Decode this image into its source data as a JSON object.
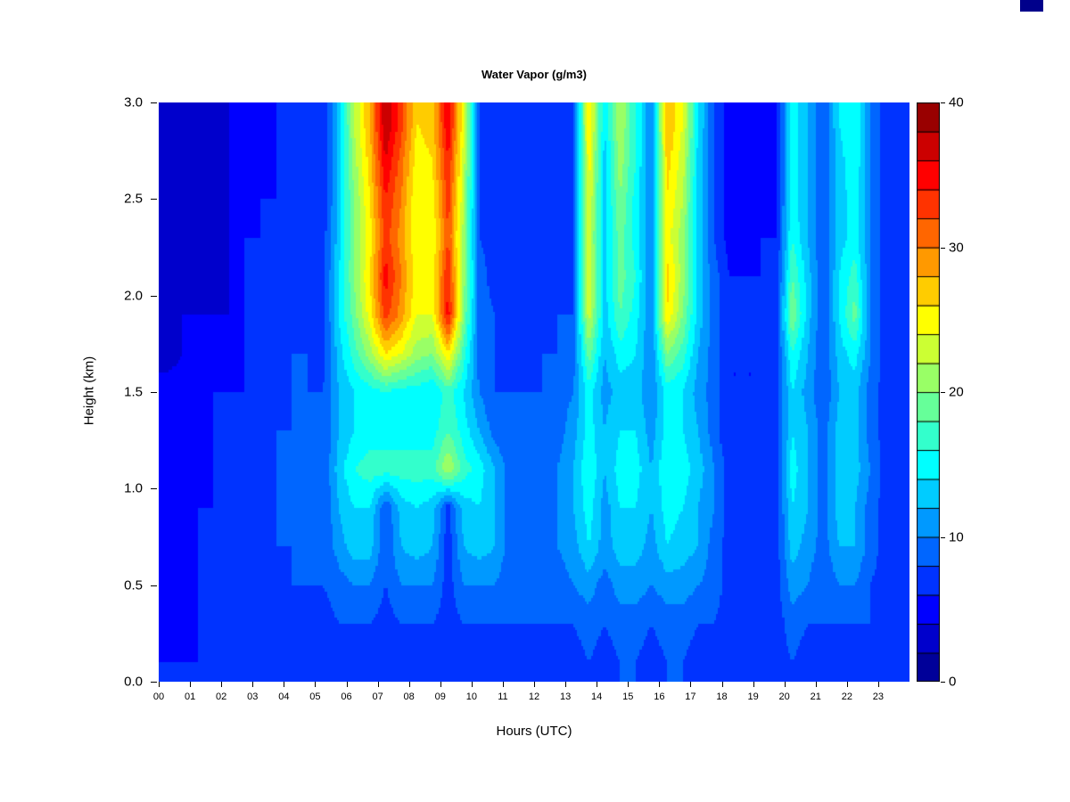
{
  "corner_swatch": {
    "color": "#00008b"
  },
  "chart_data": {
    "type": "heatmap",
    "title": "Water Vapor (g/m3)",
    "xlabel": "Hours (UTC)",
    "ylabel": "Height (km)",
    "x_ticks": [
      "00",
      "01",
      "02",
      "03",
      "04",
      "05",
      "06",
      "07",
      "08",
      "09",
      "10",
      "11",
      "12",
      "13",
      "14",
      "15",
      "16",
      "17",
      "18",
      "19",
      "20",
      "21",
      "22",
      "23"
    ],
    "y_ticks": [
      "0.0",
      "0.5",
      "1.0",
      "1.5",
      "2.0",
      "2.5",
      "3.0"
    ],
    "y_tick_values": [
      0,
      0.5,
      1.0,
      1.5,
      2.0,
      2.5,
      3.0
    ],
    "x_range": [
      0,
      24
    ],
    "y_range": [
      0,
      3
    ],
    "colorbar": {
      "min": 0,
      "max": 40,
      "ticks": [
        0,
        10,
        20,
        30,
        40
      ],
      "bands": 20,
      "colormap": "jet",
      "band_step": 2
    },
    "grid": {
      "cols": 48,
      "rows": 15,
      "x_start": 0,
      "x_step": 0.5,
      "y_start": 0,
      "y_step": 0.2,
      "row_order": "bottom-to-top",
      "values": [
        [
          6,
          6,
          6,
          6,
          6,
          7,
          7,
          7,
          7,
          7,
          7,
          7,
          7,
          7,
          7,
          7,
          7,
          7,
          8,
          7,
          7,
          7,
          7,
          7,
          7,
          7,
          7,
          8,
          7,
          8,
          8,
          7,
          8,
          8,
          7,
          7,
          7,
          7,
          7,
          7,
          8,
          7,
          7,
          7,
          7,
          7,
          7,
          7
        ],
        [
          5,
          5,
          6,
          6,
          6,
          7,
          7,
          7,
          7,
          8,
          7,
          8,
          8,
          8,
          7,
          8,
          8,
          8,
          7,
          8,
          8,
          8,
          8,
          8,
          8,
          8,
          8,
          9,
          8,
          9,
          9,
          8,
          9,
          9,
          8,
          8,
          7,
          7,
          7,
          7,
          9,
          8,
          8,
          8,
          8,
          8,
          7,
          7
        ],
        [
          5,
          5,
          6,
          6,
          6,
          7,
          7,
          7,
          8,
          8,
          8,
          9,
          10,
          10,
          8,
          10,
          10,
          10,
          7,
          10,
          10,
          10,
          8,
          8,
          8,
          9,
          10,
          11,
          9,
          11,
          11,
          10,
          11,
          11,
          10,
          9,
          7,
          7,
          7,
          7,
          11,
          10,
          8,
          10,
          10,
          8,
          7,
          7
        ],
        [
          5,
          5,
          6,
          6,
          6,
          7,
          7,
          8,
          8,
          8,
          8,
          11,
          13,
          13,
          8,
          12,
          13,
          12,
          7,
          12,
          13,
          12,
          9,
          9,
          9,
          10,
          11,
          14,
          11,
          13,
          13,
          11,
          14,
          13,
          12,
          9,
          7,
          7,
          7,
          7,
          13,
          11,
          9,
          12,
          12,
          9,
          7,
          7
        ],
        [
          5,
          5,
          6,
          6,
          6,
          7,
          7,
          8,
          8,
          9,
          8,
          12,
          14,
          14,
          8,
          13,
          14,
          13,
          7,
          13,
          14,
          12,
          9,
          9,
          9,
          10,
          12,
          15,
          11,
          14,
          14,
          12,
          15,
          14,
          12,
          10,
          7,
          7,
          7,
          7,
          14,
          12,
          9,
          13,
          12,
          9,
          7,
          7
        ],
        [
          5,
          5,
          5,
          6,
          6,
          7,
          7,
          8,
          8,
          9,
          8,
          13,
          16,
          17,
          17,
          17,
          17,
          17,
          22,
          17,
          15,
          12,
          9,
          9,
          9,
          10,
          12,
          16,
          12,
          15,
          15,
          12,
          16,
          15,
          13,
          10,
          7,
          7,
          7,
          7,
          15,
          12,
          9,
          13,
          13,
          10,
          7,
          7
        ],
        [
          5,
          5,
          5,
          6,
          6,
          7,
          7,
          8,
          8,
          9,
          8,
          12,
          14,
          15,
          15,
          15,
          15,
          15,
          18,
          15,
          12,
          9,
          8,
          8,
          9,
          9,
          11,
          15,
          12,
          14,
          14,
          11,
          15,
          14,
          12,
          9,
          6,
          6,
          7,
          7,
          14,
          12,
          9,
          13,
          13,
          9,
          7,
          7
        ],
        [
          5,
          5,
          5,
          6,
          6,
          6,
          7,
          7,
          8,
          8,
          8,
          12,
          14,
          15,
          16,
          15,
          15,
          14,
          17,
          14,
          10,
          8,
          8,
          8,
          8,
          9,
          10,
          15,
          11,
          13,
          13,
          10,
          15,
          14,
          11,
          9,
          6,
          6,
          6,
          7,
          14,
          11,
          8,
          12,
          13,
          9,
          7,
          7
        ],
        [
          3,
          4,
          4,
          4,
          4,
          6,
          6,
          7,
          8,
          8,
          7,
          13,
          17,
          21,
          26,
          24,
          21,
          20,
          26,
          17,
          9,
          8,
          7,
          7,
          8,
          8,
          9,
          19,
          12,
          15,
          14,
          10,
          20,
          17,
          12,
          9,
          6,
          6,
          6,
          7,
          16,
          12,
          8,
          13,
          15,
          10,
          7,
          6
        ],
        [
          3,
          4,
          4,
          4,
          4,
          6,
          6,
          7,
          7,
          8,
          7,
          14,
          19,
          25,
          33,
          29,
          24,
          24,
          35,
          20,
          9,
          8,
          7,
          7,
          7,
          8,
          8,
          23,
          13,
          18,
          15,
          10,
          26,
          20,
          13,
          9,
          6,
          6,
          6,
          7,
          20,
          13,
          8,
          14,
          19,
          10,
          7,
          6
        ],
        [
          3,
          3,
          3,
          3,
          4,
          6,
          6,
          7,
          7,
          7,
          7,
          14,
          20,
          26,
          35,
          30,
          25,
          25,
          34,
          21,
          9,
          7,
          7,
          7,
          7,
          7,
          8,
          24,
          13,
          19,
          16,
          10,
          27,
          21,
          13,
          9,
          6,
          6,
          6,
          6,
          18,
          13,
          8,
          14,
          17,
          10,
          7,
          6
        ],
        [
          3,
          3,
          3,
          3,
          4,
          6,
          6,
          6,
          7,
          7,
          7,
          13,
          20,
          25,
          33,
          29,
          24,
          24,
          32,
          21,
          8,
          7,
          7,
          7,
          7,
          7,
          8,
          23,
          13,
          19,
          15,
          10,
          25,
          21,
          13,
          8,
          5,
          5,
          6,
          6,
          16,
          12,
          8,
          13,
          15,
          10,
          7,
          6
        ],
        [
          3,
          3,
          3,
          3,
          4,
          5,
          6,
          6,
          6,
          7,
          6,
          13,
          20,
          26,
          34,
          30,
          24,
          25,
          33,
          22,
          8,
          7,
          6,
          6,
          6,
          7,
          7,
          24,
          13,
          20,
          15,
          10,
          26,
          22,
          13,
          8,
          5,
          5,
          5,
          6,
          15,
          12,
          8,
          13,
          15,
          10,
          7,
          6
        ],
        [
          3,
          3,
          3,
          3,
          4,
          5,
          5,
          6,
          6,
          6,
          6,
          13,
          21,
          27,
          36,
          31,
          25,
          26,
          34,
          23,
          8,
          6,
          6,
          6,
          6,
          6,
          7,
          25,
          13,
          21,
          16,
          10,
          27,
          23,
          13,
          8,
          5,
          5,
          5,
          6,
          15,
          12,
          8,
          13,
          16,
          10,
          7,
          6
        ],
        [
          3,
          3,
          3,
          3,
          4,
          5,
          5,
          6,
          6,
          6,
          6,
          13,
          22,
          28,
          38,
          33,
          26,
          27,
          36,
          24,
          8,
          6,
          6,
          6,
          6,
          6,
          7,
          26,
          14,
          22,
          16,
          10,
          28,
          24,
          14,
          8,
          5,
          5,
          5,
          6,
          15,
          12,
          8,
          14,
          16,
          10,
          7,
          6
        ]
      ]
    }
  }
}
